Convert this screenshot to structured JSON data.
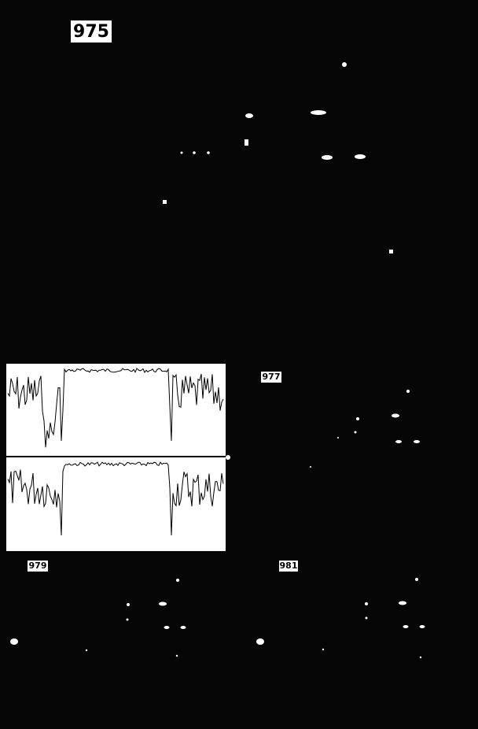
{
  "panels": [
    {
      "label": "975"
    },
    {
      "label": "977"
    },
    {
      "label": "979"
    },
    {
      "label": "981"
    }
  ]
}
